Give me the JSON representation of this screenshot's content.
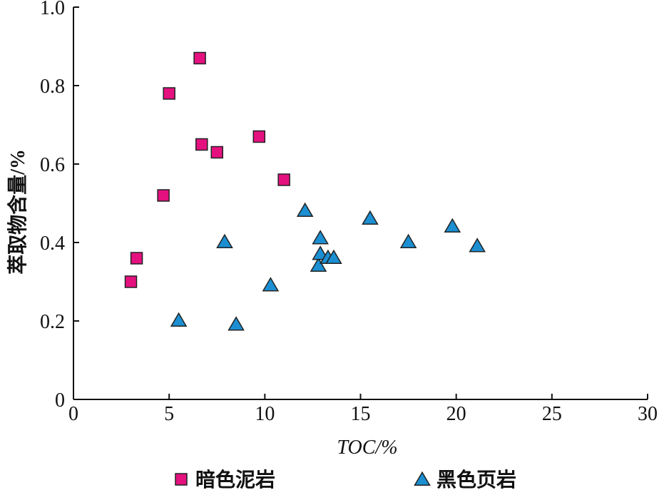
{
  "chart_data": {
    "type": "scatter",
    "xlabel": "TOC/%",
    "ylabel": "萃取物含量/%",
    "xlim": [
      0,
      30
    ],
    "ylim": [
      0,
      1.0
    ],
    "x_ticks": [
      "0",
      "5",
      "10",
      "15",
      "20",
      "25",
      "30"
    ],
    "y_ticks": [
      "0",
      "0.2",
      "0.4",
      "0.6",
      "0.8",
      "1.0"
    ],
    "grid": false,
    "legend_position": "bottom",
    "series": [
      {
        "name": "暗色泥岩",
        "marker": "square",
        "color": "#e4117f",
        "points": [
          {
            "x": 3.0,
            "y": 0.3
          },
          {
            "x": 3.3,
            "y": 0.36
          },
          {
            "x": 4.7,
            "y": 0.52
          },
          {
            "x": 5.0,
            "y": 0.78
          },
          {
            "x": 6.6,
            "y": 0.87
          },
          {
            "x": 6.7,
            "y": 0.65
          },
          {
            "x": 7.5,
            "y": 0.63
          },
          {
            "x": 9.7,
            "y": 0.67
          },
          {
            "x": 11.0,
            "y": 0.56
          }
        ]
      },
      {
        "name": "黑色页岩",
        "marker": "triangle",
        "color": "#1b8fd2",
        "points": [
          {
            "x": 5.5,
            "y": 0.2
          },
          {
            "x": 7.9,
            "y": 0.4
          },
          {
            "x": 8.5,
            "y": 0.19
          },
          {
            "x": 10.3,
            "y": 0.29
          },
          {
            "x": 12.1,
            "y": 0.48
          },
          {
            "x": 12.8,
            "y": 0.34
          },
          {
            "x": 12.9,
            "y": 0.37
          },
          {
            "x": 12.9,
            "y": 0.41
          },
          {
            "x": 13.3,
            "y": 0.36
          },
          {
            "x": 13.6,
            "y": 0.36
          },
          {
            "x": 15.5,
            "y": 0.46
          },
          {
            "x": 17.5,
            "y": 0.4
          },
          {
            "x": 19.8,
            "y": 0.44
          },
          {
            "x": 21.1,
            "y": 0.39
          }
        ]
      }
    ]
  }
}
